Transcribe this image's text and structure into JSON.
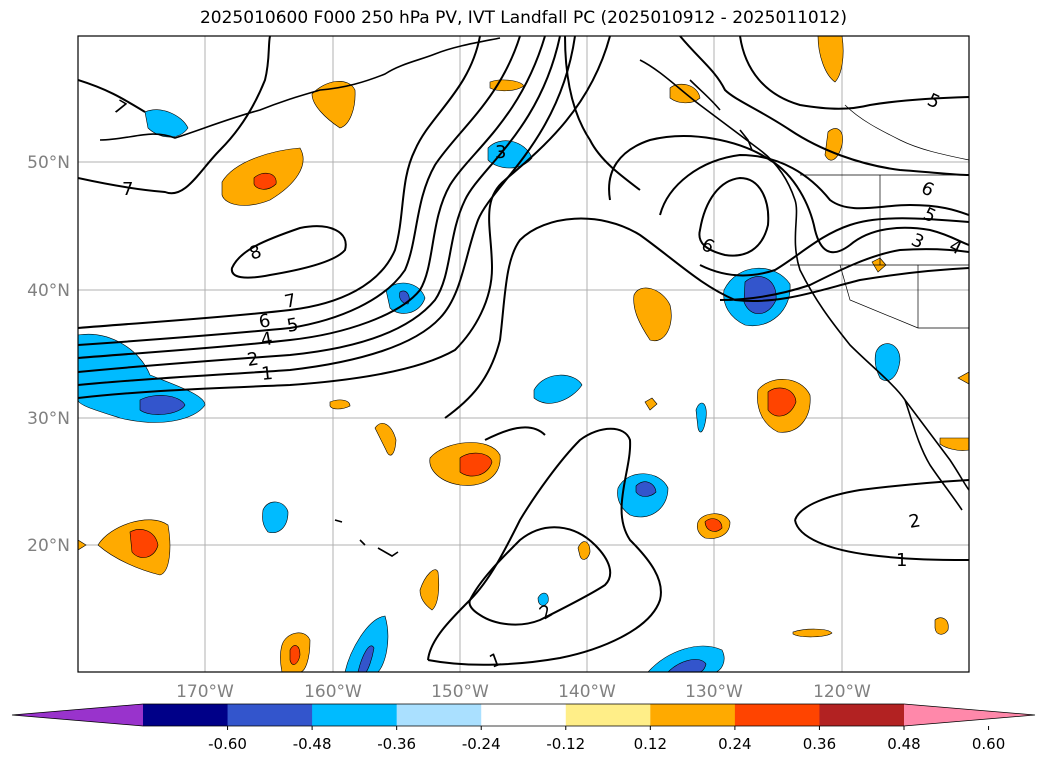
{
  "title": "2025010600 F000 250 hPa PV, IVT Landfall PC (2025010912 - 2025011012)",
  "map": {
    "lat_labels": [
      "50°N",
      "40°N",
      "30°N",
      "20°N"
    ],
    "lon_labels": [
      "170°W",
      "160°W",
      "150°W",
      "140°W",
      "130°W",
      "120°W"
    ],
    "label_color": "#808080",
    "grid": true,
    "contour_color": "#000000",
    "contour_labels": [
      "7",
      "7",
      "8",
      "7",
      "6",
      "5",
      "4",
      "2",
      "1",
      "3",
      "6",
      "5",
      "6",
      "5",
      "3",
      "4",
      "1",
      "2",
      "1",
      "2"
    ]
  },
  "colorbar": {
    "ticks": [
      "-0.60",
      "-0.48",
      "-0.36",
      "-0.24",
      "-0.12",
      "0.12",
      "0.24",
      "0.36",
      "0.48",
      "0.60"
    ],
    "colors": [
      "#9933cc",
      "#000088",
      "#3355cc",
      "#00bbff",
      "#aae0ff",
      "#ffffff",
      "#ffee88",
      "#ffaa00",
      "#ff4400",
      "#b22222",
      "#ff88aa"
    ],
    "extend": "both"
  }
}
